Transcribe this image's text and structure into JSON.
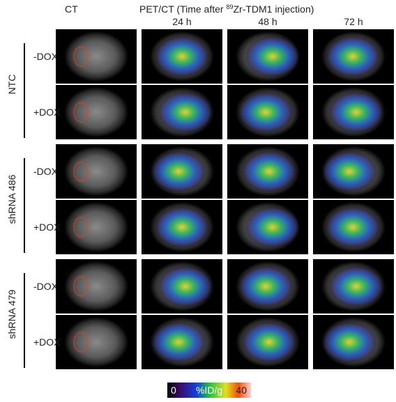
{
  "header": {
    "ct": "CT",
    "pet_prefix": "PET/CT (Time after ",
    "pet_sup": "89",
    "pet_suffix": "Zr-TDM1 injection)",
    "times": [
      "24 h",
      "48 h",
      "72 h"
    ]
  },
  "groups": [
    {
      "name": "NTC",
      "conditions": [
        "-DOX",
        "+DOX"
      ]
    },
    {
      "name": "shRNA 486",
      "conditions": [
        "-DOX",
        "+DOX"
      ]
    },
    {
      "name": "shRNA 479",
      "conditions": [
        "-DOX",
        "+DOX"
      ]
    }
  ],
  "colorbar": {
    "min": 0,
    "label": "%ID/g",
    "max": 40
  }
}
